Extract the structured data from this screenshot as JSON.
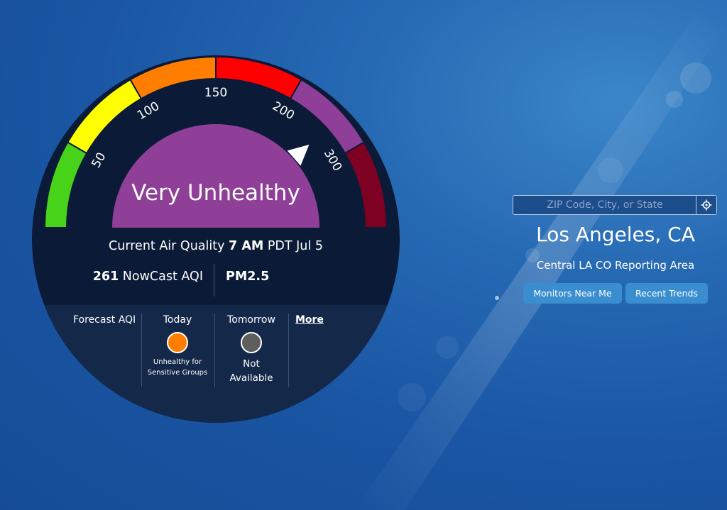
{
  "gauge": {
    "tick_labels": [
      "50",
      "100",
      "150",
      "200",
      "300"
    ],
    "segment_colors": [
      "#47d31a",
      "#ffff00",
      "#ff7e00",
      "#ff0000",
      "#8f3f97",
      "#7e0023"
    ],
    "needle_aqi": 261,
    "category": "Very Unhealthy",
    "category_color": "#8f3f97"
  },
  "current": {
    "prefix": "Current Air Quality",
    "time": "7 AM",
    "suffix": "PDT Jul 5",
    "aqi_value": "261",
    "aqi_label": "NowCast AQI",
    "pollutant": "PM2.5"
  },
  "forecast": {
    "label": "Forecast AQI",
    "today": {
      "heading": "Today",
      "color": "#ff7e00",
      "desc_line1": "Unhealthy for",
      "desc_line2": "Sensitive Groups"
    },
    "tomorrow": {
      "heading": "Tomorrow",
      "color": "#5e5e5e",
      "desc_line1": "Not",
      "desc_line2": "Available"
    },
    "more_link": "More"
  },
  "search": {
    "placeholder": "ZIP Code, City, or State",
    "value": "",
    "locate_icon": "crosshair-icon"
  },
  "location": {
    "city": "Los Angeles, CA",
    "reporting_area": "Central LA CO Reporting Area"
  },
  "buttons": {
    "monitors": "Monitors Near Me",
    "trends": "Recent Trends"
  }
}
